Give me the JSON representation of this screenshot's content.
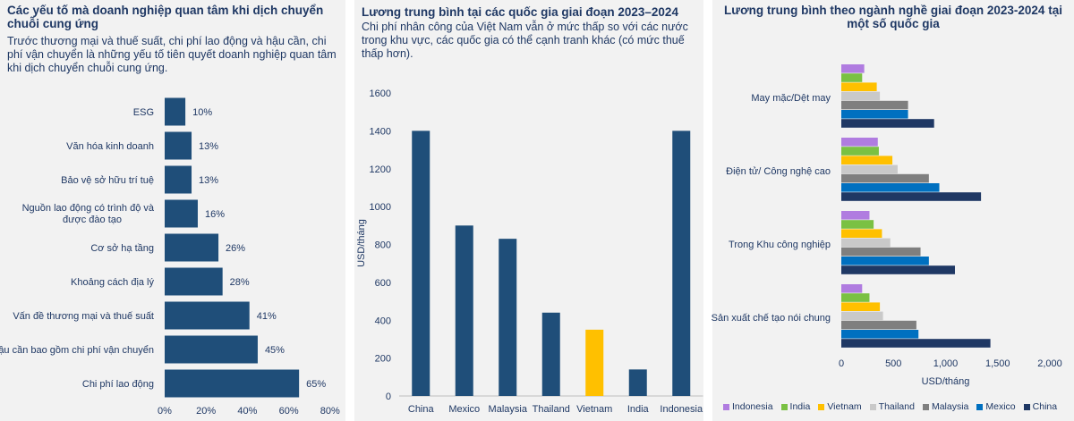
{
  "chart_data": [
    {
      "type": "bar",
      "orientation": "horizontal",
      "title": "Các yếu tố mà doanh nghiệp quan tâm khi dịch chuyển chuỗi cung ứng",
      "subtitle": "Trước thương mại và thuế suất, chi phí lao động và hậu cần, chi phí vận chuyển là những yếu tố tiên quyết doanh nghiệp quan tâm khi dịch chuyển chuỗi cung ứng.",
      "categories": [
        "ESG",
        "Văn hóa kinh doanh",
        "Bảo vệ sở hữu trí tuệ",
        "Nguồn lao động có trình độ và được đào tạo",
        "Cơ sở hạ tầng",
        "Khoảng cách địa lý",
        "Vấn đề thương mại và thuế suất",
        "Hậu cần bao gồm chi phí vận chuyển",
        "Chi phí lao động"
      ],
      "values": [
        10,
        13,
        13,
        16,
        26,
        28,
        41,
        45,
        65
      ],
      "data_labels": [
        "10%",
        "13%",
        "13%",
        "16%",
        "26%",
        "28%",
        "41%",
        "45%",
        "65%"
      ],
      "xlim": [
        0,
        80
      ],
      "xticks": [
        "0%",
        "20%",
        "40%",
        "60%",
        "80%"
      ],
      "color": "#1f4e79"
    },
    {
      "type": "bar",
      "title": "Lương trung bình tại các quốc gia giai đoạn 2023–2024",
      "subtitle": "Chi phí nhân công của Việt Nam vẫn ở mức thấp so với các nước trong khu vực, các quốc gia có thể cạnh tranh khác (có mức thuế thấp hơn).",
      "categories": [
        "China",
        "Mexico",
        "Malaysia",
        "Thailand",
        "Vietnam",
        "India",
        "Indonesia"
      ],
      "values": [
        1400,
        900,
        830,
        440,
        350,
        140,
        1400
      ],
      "highlight": "Vietnam",
      "ylabel": "USD/tháng",
      "ylim": [
        0,
        1600
      ],
      "yticks": [
        "0",
        "200",
        "400",
        "600",
        "800",
        "1000",
        "1200",
        "1400",
        "1600"
      ],
      "color": "#1f4e79",
      "highlight_color": "#ffc000"
    },
    {
      "type": "bar",
      "orientation": "horizontal",
      "title": "Lương trung bình theo ngành nghề giai đoạn 2023-2024 tại một số quốc gia",
      "categories": [
        "May mặc/Dệt may",
        "Điện tử/ Công nghệ cao",
        "Trong Khu công nghiệp",
        "Sản xuất chế tạo nói chung"
      ],
      "series": [
        {
          "name": "Indonesia",
          "color": "#b07ce0",
          "values": [
            220,
            350,
            270,
            200
          ]
        },
        {
          "name": "India",
          "color": "#7ac143",
          "values": [
            200,
            360,
            310,
            270
          ]
        },
        {
          "name": "Vietnam",
          "color": "#ffc000",
          "values": [
            340,
            490,
            390,
            370
          ]
        },
        {
          "name": "Thailand",
          "color": "#c9c9c9",
          "values": [
            370,
            540,
            470,
            400
          ]
        },
        {
          "name": "Malaysia",
          "color": "#7f7f7f",
          "values": [
            640,
            840,
            760,
            720
          ]
        },
        {
          "name": "Mexico",
          "color": "#0070c0",
          "values": [
            640,
            940,
            840,
            740
          ]
        },
        {
          "name": "China",
          "color": "#1f3864",
          "values": [
            890,
            1340,
            1090,
            1430
          ]
        }
      ],
      "xlabel": "USD/tháng",
      "xlim": [
        0,
        2000
      ],
      "xticks": [
        "0",
        "500",
        "1,000",
        "1,500",
        "2,000"
      ]
    }
  ]
}
